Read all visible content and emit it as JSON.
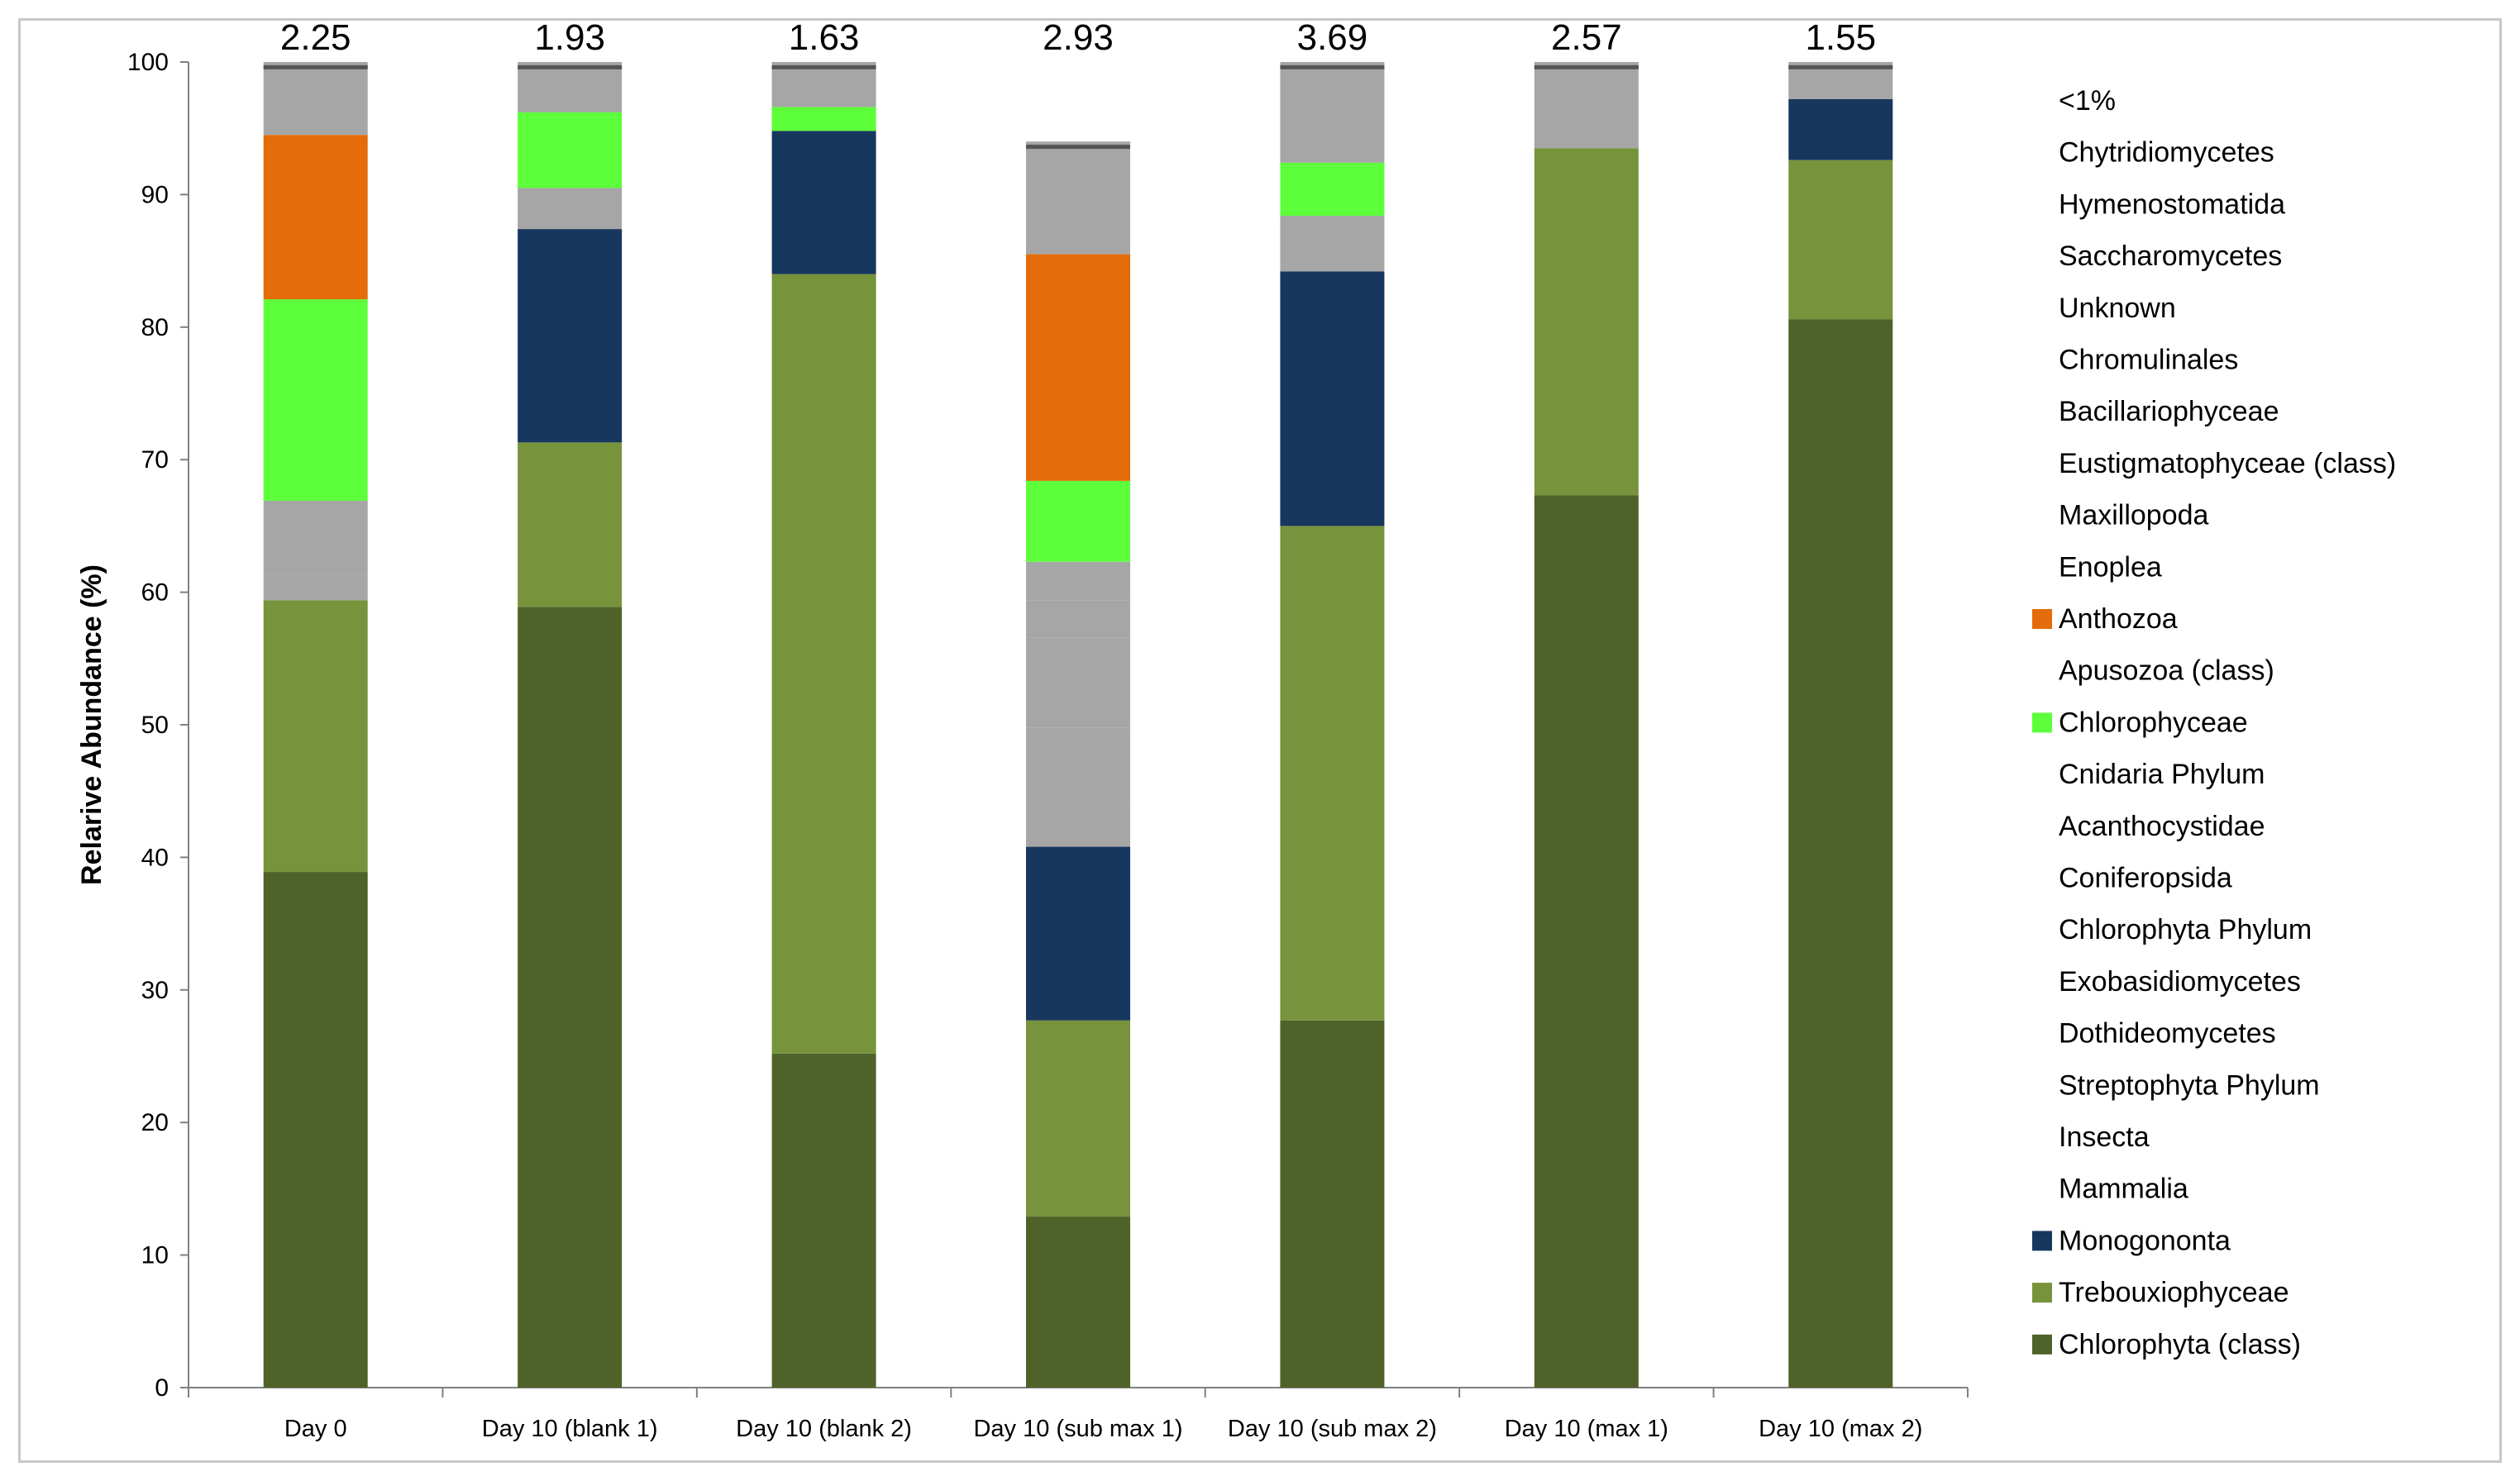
{
  "chart_data": {
    "type": "bar",
    "stacked": true,
    "ylabel": "Relarive Abundance (%)",
    "xlabel": "",
    "ylim": [
      0,
      100
    ],
    "yticks": [
      0,
      10,
      20,
      30,
      40,
      50,
      60,
      70,
      80,
      90,
      100
    ],
    "categories": [
      "Day 0",
      "Day 10 (blank 1)",
      "Day 10 (blank 2)",
      "Day 10 (sub max 1)",
      "Day 10 (sub max 2)",
      "Day 10 (max 1)",
      "Day 10 (max 2)"
    ],
    "top_labels": [
      "2.25",
      "1.93",
      "1.63",
      "2.93",
      "3.69",
      "2.57",
      "1.55"
    ],
    "legend_position": "right",
    "series": [
      {
        "name": "Chlorophyta (class)",
        "color": "#4f6229",
        "values": [
          38.9,
          58.9,
          25.2,
          12.9,
          27.7,
          67.3,
          80.6
        ]
      },
      {
        "name": "Trebouxiophyceae",
        "color": "#77933c",
        "values": [
          20.5,
          12.4,
          58.8,
          14.8,
          37.3,
          26.2,
          12.0
        ]
      },
      {
        "name": "Monogononta",
        "color": "#17375e",
        "values": [
          0,
          16.1,
          10.8,
          13.1,
          19.2,
          0,
          4.6
        ]
      },
      {
        "name": "Mammalia",
        "color": "#a6a6a6",
        "values": [
          2.0,
          0,
          0,
          3.0,
          0,
          0,
          0
        ]
      },
      {
        "name": "Insecta",
        "color": "#a6a6a6",
        "values": [
          3.5,
          0,
          0,
          6.0,
          0,
          0,
          0
        ]
      },
      {
        "name": "Streptophyta Phylum",
        "color": "#a6a6a6",
        "values": [
          2.0,
          1.6,
          0,
          6.8,
          4.2,
          0,
          0
        ]
      },
      {
        "name": "Dothideomycetes",
        "color": "#a6a6a6",
        "values": [
          0,
          1.5,
          0,
          2.8,
          0,
          0,
          0
        ]
      },
      {
        "name": "Exobasidiomycetes",
        "color": "#a6a6a6",
        "values": [
          0,
          0,
          0,
          2.9,
          0,
          0,
          0
        ]
      },
      {
        "name": "Chlorophyta Phylum",
        "color": "#a6a6a6",
        "values": [
          0,
          0,
          0,
          0,
          0,
          0,
          0
        ]
      },
      {
        "name": "Coniferopsida",
        "color": "#a6a6a6",
        "values": [
          0,
          0,
          0,
          0,
          0,
          0,
          0
        ]
      },
      {
        "name": "Acanthocystidae",
        "color": "#a6a6a6",
        "values": [
          0,
          0,
          0,
          0,
          0,
          0,
          0
        ]
      },
      {
        "name": "Cnidaria Phylum",
        "color": "#a6a6a6",
        "values": [
          0,
          0,
          0,
          0,
          0,
          0,
          0
        ]
      },
      {
        "name": "Chlorophyceae",
        "color": "#5cff3a",
        "values": [
          15.2,
          5.7,
          1.8,
          6.1,
          4.0,
          0,
          0
        ]
      },
      {
        "name": "Apusozoa (class)",
        "color": "#a6a6a6",
        "values": [
          0,
          0,
          0,
          0,
          0,
          0,
          0
        ]
      },
      {
        "name": "Anthozoa",
        "color": "#e46c0a",
        "values": [
          12.4,
          0,
          0,
          17.1,
          0,
          0,
          0
        ]
      },
      {
        "name": "Enoplea",
        "color": "#a6a6a6",
        "values": [
          0,
          0,
          0,
          0,
          0,
          0,
          0
        ]
      },
      {
        "name": "Maxillopoda",
        "color": "#a6a6a6",
        "values": [
          0,
          0,
          0,
          0,
          0,
          0,
          0
        ]
      },
      {
        "name": "Eustigmatophyceae (class)",
        "color": "#a6a6a6",
        "values": [
          0,
          0,
          0,
          0,
          0,
          0,
          0
        ]
      },
      {
        "name": "Bacillariophyceae",
        "color": "#a6a6a6",
        "values": [
          0,
          0,
          0,
          0,
          0,
          0,
          0
        ]
      },
      {
        "name": "Chromulinales",
        "color": "#a6a6a6",
        "values": [
          0,
          0,
          0,
          0,
          0,
          0,
          0
        ]
      },
      {
        "name": "Unknown",
        "color": "#a6a6a6",
        "values": [
          0,
          0,
          0,
          0,
          0,
          0,
          0
        ]
      },
      {
        "name": "Saccharomycetes",
        "color": "#a6a6a6",
        "values": [
          0,
          0,
          0,
          0,
          0,
          0,
          0
        ]
      },
      {
        "name": "Hymenostomatida",
        "color": "#a6a6a6",
        "values": [
          0,
          0,
          0,
          0,
          0,
          0,
          0
        ]
      },
      {
        "name": "Chytridiomycetes",
        "color": "#a6a6a6",
        "values": [
          0,
          0,
          0,
          0,
          0,
          0,
          0
        ]
      },
      {
        "name": "<1%",
        "color": "#a6a6a6",
        "values": [
          5.5,
          3.8,
          3.4,
          8.5,
          7.6,
          6.5,
          2.8
        ]
      }
    ]
  }
}
